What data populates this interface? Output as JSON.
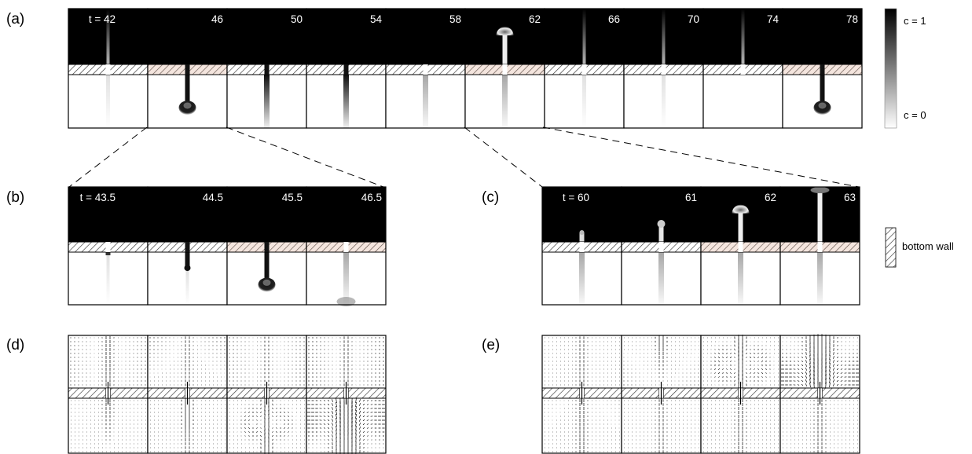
{
  "panels": {
    "a": {
      "label": "(a)",
      "frames": [
        {
          "t": "t = 42",
          "wall_tint": false,
          "upper": "stem",
          "lower": "faint"
        },
        {
          "t": "46",
          "wall_tint": true,
          "upper": "none",
          "lower": "plume"
        },
        {
          "t": "50",
          "wall_tint": false,
          "upper": "none",
          "lower": "column"
        },
        {
          "t": "54",
          "wall_tint": false,
          "upper": "none",
          "lower": "column"
        },
        {
          "t": "58",
          "wall_tint": false,
          "upper": "none",
          "lower": "column-light"
        },
        {
          "t": "62",
          "wall_tint": true,
          "upper": "mushroom",
          "lower": "column-light"
        },
        {
          "t": "66",
          "wall_tint": false,
          "upper": "stem",
          "lower": "faint"
        },
        {
          "t": "70",
          "wall_tint": false,
          "upper": "stem",
          "lower": "faint"
        },
        {
          "t": "74",
          "wall_tint": false,
          "upper": "stem",
          "lower": "none"
        },
        {
          "t": "78",
          "wall_tint": true,
          "upper": "none",
          "lower": "plume"
        }
      ]
    },
    "b": {
      "label": "(b)",
      "frames": [
        {
          "t": "t = 43.5",
          "wall_tint": false,
          "upper": "none",
          "lower": "finger-short"
        },
        {
          "t": "44.5",
          "wall_tint": false,
          "upper": "none",
          "lower": "finger"
        },
        {
          "t": "45.5",
          "wall_tint": true,
          "upper": "none",
          "lower": "plume"
        },
        {
          "t": "46.5",
          "wall_tint": true,
          "upper": "none",
          "lower": "column-bottom"
        }
      ]
    },
    "c": {
      "label": "(c)",
      "frames": [
        {
          "t": "t = 60",
          "wall_tint": false,
          "upper": "tip",
          "lower": "column-light"
        },
        {
          "t": "61",
          "wall_tint": false,
          "upper": "tip-high",
          "lower": "column-light"
        },
        {
          "t": "62",
          "wall_tint": true,
          "upper": "mushroom",
          "lower": "column-light"
        },
        {
          "t": "63",
          "wall_tint": true,
          "upper": "stem-top",
          "lower": "column-light"
        }
      ]
    },
    "d": {
      "label": "(d)",
      "frames": [
        {
          "flow": "early"
        },
        {
          "flow": "finger"
        },
        {
          "flow": "lower-vortex"
        },
        {
          "flow": "lower-strong"
        }
      ]
    },
    "e": {
      "label": "(e)",
      "frames": [
        {
          "flow": "early-up"
        },
        {
          "flow": "rise"
        },
        {
          "flow": "upper-vortex"
        },
        {
          "flow": "upper-strong"
        }
      ]
    }
  },
  "colorbar": {
    "top_label": "c = 1",
    "bottom_label": "c = 0"
  },
  "legend": {
    "wall_label": "bottom wall"
  }
}
